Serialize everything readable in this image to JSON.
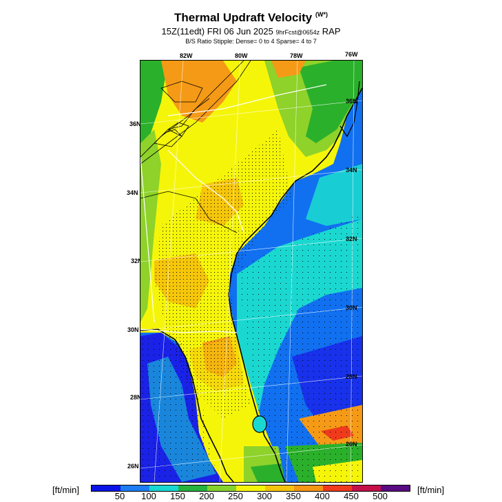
{
  "header": {
    "title": "Thermal Updraft Velocity",
    "title_unit": "(W*)",
    "subtitle_main": "15Z(11edt) FRI 06 Jun 2025",
    "subtitle_fcst": "9hrFcst@0654z",
    "subtitle_model": "RAP",
    "stipple_note": "B/S Ratio Stipple:  Dense= 0 to 4  Sparse= 4 to 7"
  },
  "map": {
    "lon_labels_top": [
      "82W",
      "80W",
      "78W",
      "76W"
    ],
    "lat_labels_left": [
      "36N",
      "34N",
      "32N",
      "30N",
      "28N",
      "26N"
    ],
    "lat_labels_right": [
      "36N",
      "34N",
      "32N",
      "30N",
      "28N",
      "26N"
    ],
    "palette": {
      "ocean_deep": "#1a22e8",
      "ocean_blue": "#1170f0",
      "ocean_cyan": "#1ad8d0",
      "green": "#2bb02b",
      "light_green": "#8ed22a",
      "yellow": "#f5f50a",
      "gold": "#f5c60a",
      "orange": "#f59a16",
      "coast": "#000000",
      "state_line": "#ffffff"
    }
  },
  "colorbar": {
    "unit_left": "[ft/min]",
    "unit_right": "[ft/min]",
    "ticks": [
      "50",
      "100",
      "150",
      "200",
      "250",
      "300",
      "350",
      "400",
      "450",
      "500"
    ],
    "colors": [
      "#0b14e6",
      "#1e7cf2",
      "#17d8d2",
      "#27b23e",
      "#86d22c",
      "#f5f50a",
      "#f5c40b",
      "#f59614",
      "#ef3a1c",
      "#c41048",
      "#5a0a82"
    ]
  }
}
